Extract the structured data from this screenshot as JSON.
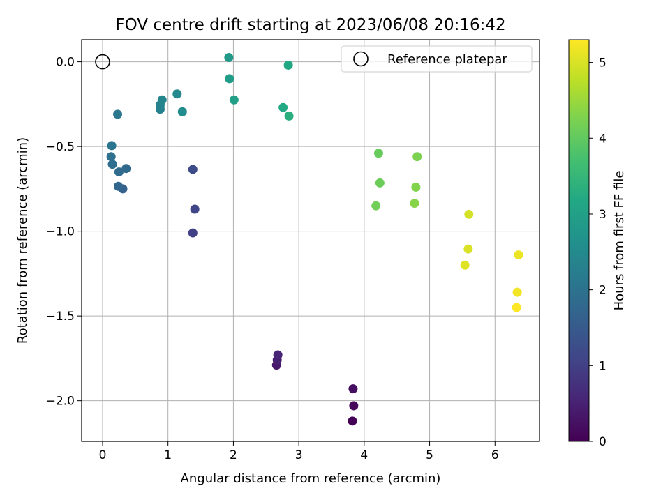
{
  "chart_data": {
    "type": "scatter",
    "title": "FOV centre drift starting at 2023/06/08 20:16:42",
    "xlabel": "Angular distance from reference (arcmin)",
    "ylabel": "Rotation from reference (arcmin)",
    "xlim": [
      -0.32,
      6.68
    ],
    "ylim": [
      -2.24,
      0.13
    ],
    "xticks": [
      0,
      1,
      2,
      3,
      4,
      5,
      6
    ],
    "yticks": [
      0.0,
      -0.5,
      -1.0,
      -1.5,
      -2.0
    ],
    "xtick_labels": [
      "0",
      "1",
      "2",
      "3",
      "4",
      "5",
      "6"
    ],
    "ytick_labels": [
      "0.0",
      "−0.5",
      "−1.0",
      "−1.5",
      "−2.0"
    ],
    "grid": true,
    "legend": {
      "placement": "top-right",
      "entries": [
        "Reference platepar"
      ]
    },
    "reference_point": {
      "x": 0.0,
      "y": 0.0,
      "marker": "open-circle",
      "label": "Reference platepar"
    },
    "colorbar": {
      "label": "Hours from first FF file",
      "colormap": "viridis",
      "range": [
        0,
        5.3
      ],
      "ticks": [
        0,
        1,
        2,
        3,
        4,
        5
      ],
      "tick_labels": [
        "0",
        "1",
        "2",
        "3",
        "4",
        "5"
      ]
    },
    "points": [
      {
        "x": 3.82,
        "y": -2.12,
        "hours": 0.02
      },
      {
        "x": 3.84,
        "y": -2.03,
        "hours": 0.1
      },
      {
        "x": 3.83,
        "y": -1.93,
        "hours": 0.2
      },
      {
        "x": 2.66,
        "y": -1.79,
        "hours": 0.35
      },
      {
        "x": 2.67,
        "y": -1.76,
        "hours": 0.45
      },
      {
        "x": 2.68,
        "y": -1.73,
        "hours": 0.55
      },
      {
        "x": 1.38,
        "y": -1.01,
        "hours": 1.0
      },
      {
        "x": 1.41,
        "y": -0.87,
        "hours": 1.1
      },
      {
        "x": 1.38,
        "y": -0.635,
        "hours": 1.2
      },
      {
        "x": 0.31,
        "y": -0.75,
        "hours": 1.65
      },
      {
        "x": 0.24,
        "y": -0.735,
        "hours": 1.75
      },
      {
        "x": 0.36,
        "y": -0.63,
        "hours": 1.8
      },
      {
        "x": 0.25,
        "y": -0.65,
        "hours": 1.85
      },
      {
        "x": 0.15,
        "y": -0.605,
        "hours": 1.9
      },
      {
        "x": 0.13,
        "y": -0.56,
        "hours": 1.95
      },
      {
        "x": 0.14,
        "y": -0.495,
        "hours": 2.05
      },
      {
        "x": 0.23,
        "y": -0.31,
        "hours": 2.1
      },
      {
        "x": 0.88,
        "y": -0.28,
        "hours": 2.3
      },
      {
        "x": 0.88,
        "y": -0.255,
        "hours": 2.35
      },
      {
        "x": 0.91,
        "y": -0.225,
        "hours": 2.4
      },
      {
        "x": 1.14,
        "y": -0.19,
        "hours": 2.45
      },
      {
        "x": 1.22,
        "y": -0.295,
        "hours": 2.55
      },
      {
        "x": 1.93,
        "y": 0.025,
        "hours": 2.85
      },
      {
        "x": 1.94,
        "y": -0.1,
        "hours": 2.9
      },
      {
        "x": 2.01,
        "y": -0.225,
        "hours": 3.0
      },
      {
        "x": 2.84,
        "y": -0.02,
        "hours": 3.15
      },
      {
        "x": 2.76,
        "y": -0.27,
        "hours": 3.2
      },
      {
        "x": 2.85,
        "y": -0.32,
        "hours": 3.3
      },
      {
        "x": 4.22,
        "y": -0.54,
        "hours": 4.05
      },
      {
        "x": 4.24,
        "y": -0.715,
        "hours": 4.1
      },
      {
        "x": 4.18,
        "y": -0.85,
        "hours": 4.15
      },
      {
        "x": 4.81,
        "y": -0.56,
        "hours": 4.25
      },
      {
        "x": 4.79,
        "y": -0.74,
        "hours": 4.3
      },
      {
        "x": 4.77,
        "y": -0.835,
        "hours": 4.35
      },
      {
        "x": 5.6,
        "y": -0.9,
        "hours": 4.95
      },
      {
        "x": 5.59,
        "y": -1.105,
        "hours": 5.0
      },
      {
        "x": 5.54,
        "y": -1.2,
        "hours": 5.05
      },
      {
        "x": 6.36,
        "y": -1.14,
        "hours": 5.15
      },
      {
        "x": 6.34,
        "y": -1.36,
        "hours": 5.2
      },
      {
        "x": 6.33,
        "y": -1.45,
        "hours": 5.28
      }
    ]
  }
}
